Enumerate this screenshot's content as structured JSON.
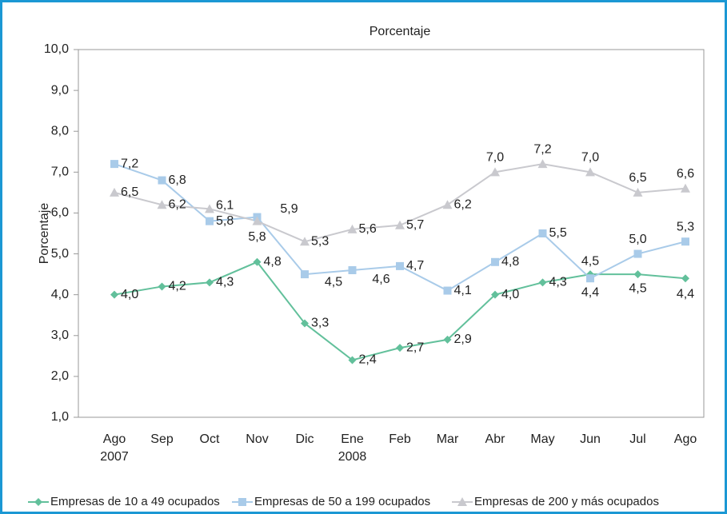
{
  "chart_data": {
    "type": "line",
    "title": "Porcentaje",
    "y_label": "Porcentaje",
    "categories": [
      "Ago",
      "Sep",
      "Oct",
      "Nov",
      "Dic",
      "Ene",
      "Feb",
      "Mar",
      "Abr",
      "May",
      "Jun",
      "Jul",
      "Ago"
    ],
    "years": [
      "2007",
      null,
      null,
      null,
      null,
      "2008",
      null,
      null,
      null,
      null,
      null,
      null,
      null
    ],
    "ylim": [
      1,
      10
    ],
    "yticks": [
      {
        "value": 1,
        "label": "1,0"
      },
      {
        "value": 2,
        "label": "2,0"
      },
      {
        "value": 3,
        "label": "3,0"
      },
      {
        "value": 4,
        "label": "4,0"
      },
      {
        "value": 5,
        "label": "5,0"
      },
      {
        "value": 6,
        "label": "6,0"
      },
      {
        "value": 7,
        "label": "7,0"
      },
      {
        "value": 8,
        "label": "8,0"
      },
      {
        "value": 9,
        "label": "9,0"
      },
      {
        "value": 10,
        "label": "10,0"
      }
    ],
    "grid": false,
    "series": [
      {
        "name": "Empresas de 10 a 49 ocupados",
        "color": "#62c09b",
        "marker": "diamond",
        "values": [
          4.0,
          4.2,
          4.3,
          4.8,
          3.3,
          2.4,
          2.7,
          2.9,
          4.0,
          4.3,
          4.5,
          4.5,
          4.4
        ],
        "value_labels": [
          "4,0",
          "4,2",
          "4,3",
          "4,8",
          "3,3",
          "2,4",
          "2,7",
          "2,9",
          "4,0",
          "4,3",
          "4,5",
          "4,5",
          "4,4"
        ]
      },
      {
        "name": "Empresas de 50 a 199 ocupados",
        "color": "#a9cbe9",
        "marker": "square",
        "values": [
          7.2,
          6.8,
          5.8,
          5.9,
          4.5,
          4.6,
          4.7,
          4.1,
          4.8,
          5.5,
          4.4,
          5.0,
          5.3
        ],
        "value_labels": [
          "7,2",
          "6,8",
          "5,8",
          "5,9",
          "4,5",
          "4,6",
          "4,7",
          "4,1",
          "4,8",
          "5,5",
          "4,4",
          "5,0",
          "5,3"
        ]
      },
      {
        "name": "Empresas de 200 y más ocupados",
        "color": "#c9c9ce",
        "marker": "triangle",
        "values": [
          6.5,
          6.2,
          6.1,
          5.8,
          5.3,
          5.6,
          5.7,
          6.2,
          7.0,
          7.2,
          7.0,
          6.5,
          6.6
        ],
        "value_labels": [
          "6,5",
          "6,2",
          "6,1",
          "5,8",
          "5,3",
          "5,6",
          "5,7",
          "6,2",
          "7,0",
          "7,2",
          "7,0",
          "6,5",
          "6,6"
        ]
      }
    ]
  }
}
